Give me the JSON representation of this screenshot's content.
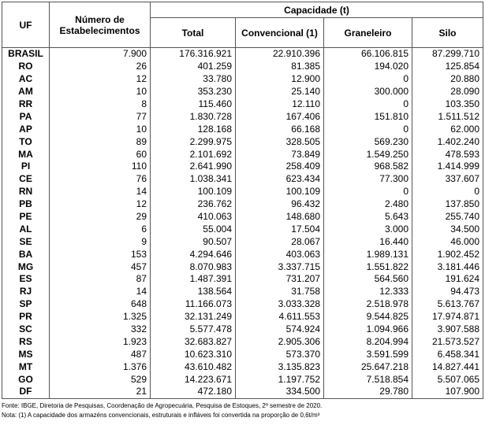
{
  "table": {
    "columns": [
      "UF",
      "Número de Estabelecimentos",
      "Total",
      "Convencional (1)",
      "Graneleiro",
      "Silo"
    ],
    "group_header": "Capacidade (t)",
    "rows": [
      [
        "BRASIL",
        "7.900",
        "176.316.921",
        "22.910.396",
        "66.106.815",
        "87.299.710"
      ],
      [
        "RO",
        "26",
        "401.259",
        "81.385",
        "194.020",
        "125.854"
      ],
      [
        "AC",
        "12",
        "33.780",
        "12.900",
        "0",
        "20.880"
      ],
      [
        "AM",
        "10",
        "353.230",
        "25.140",
        "300.000",
        "28.090"
      ],
      [
        "RR",
        "8",
        "115.460",
        "12.110",
        "0",
        "103.350"
      ],
      [
        "PA",
        "77",
        "1.830.728",
        "167.406",
        "151.810",
        "1.511.512"
      ],
      [
        "AP",
        "10",
        "128.168",
        "66.168",
        "0",
        "62.000"
      ],
      [
        "TO",
        "89",
        "2.299.975",
        "328.505",
        "569.230",
        "1.402.240"
      ],
      [
        "MA",
        "60",
        "2.101.692",
        "73.849",
        "1.549.250",
        "478.593"
      ],
      [
        "PI",
        "110",
        "2.641.990",
        "258.409",
        "968.582",
        "1.414.999"
      ],
      [
        "CE",
        "76",
        "1.038.341",
        "623.434",
        "77.300",
        "337.607"
      ],
      [
        "RN",
        "14",
        "100.109",
        "100.109",
        "0",
        "0"
      ],
      [
        "PB",
        "12",
        "236.762",
        "96.432",
        "2.480",
        "137.850"
      ],
      [
        "PE",
        "29",
        "410.063",
        "148.680",
        "5.643",
        "255.740"
      ],
      [
        "AL",
        "6",
        "55.004",
        "17.504",
        "3.000",
        "34.500"
      ],
      [
        "SE",
        "9",
        "90.507",
        "28.067",
        "16.440",
        "46.000"
      ],
      [
        "BA",
        "153",
        "4.294.646",
        "403.063",
        "1.989.131",
        "1.902.452"
      ],
      [
        "MG",
        "457",
        "8.070.983",
        "3.337.715",
        "1.551.822",
        "3.181.446"
      ],
      [
        "ES",
        "87",
        "1.487.391",
        "731.207",
        "564.560",
        "191.624"
      ],
      [
        "RJ",
        "14",
        "138.564",
        "31.758",
        "12.333",
        "94.473"
      ],
      [
        "SP",
        "648",
        "11.166.073",
        "3.033.328",
        "2.518.978",
        "5.613.767"
      ],
      [
        "PR",
        "1.325",
        "32.131.249",
        "4.611.553",
        "9.544.825",
        "17.974.871"
      ],
      [
        "SC",
        "332",
        "5.577.478",
        "574.924",
        "1.094.966",
        "3.907.588"
      ],
      [
        "RS",
        "1.923",
        "32.683.827",
        "2.905.306",
        "8.204.994",
        "21.573.527"
      ],
      [
        "MS",
        "487",
        "10.623.310",
        "573.370",
        "3.591.599",
        "6.458.341"
      ],
      [
        "MT",
        "1.376",
        "43.610.482",
        "3.135.823",
        "25.647.218",
        "14.827.441"
      ],
      [
        "GO",
        "529",
        "14.223.671",
        "1.197.752",
        "7.518.854",
        "5.507.065"
      ],
      [
        "DF",
        "21",
        "472.180",
        "334.500",
        "29.780",
        "107.900"
      ]
    ]
  },
  "footnotes": [
    "Fonte: IBGE, Diretoria de Pesquisas, Coordenação de Agropecuária, Pesquisa de Estoques, 2º semestre de 2020.",
    "Nota: (1) A capacidade dos armazéns convencionais, estruturais e infláveis foi convertida na proporção de 0,6t/m³"
  ]
}
